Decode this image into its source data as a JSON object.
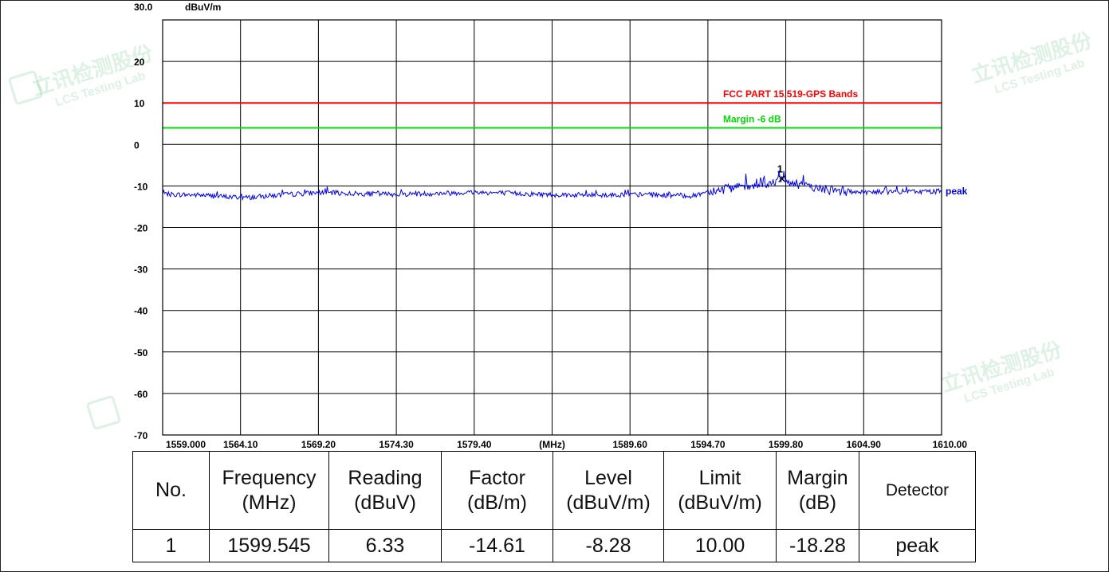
{
  "chart_data": {
    "type": "line",
    "ylabel": "dBuV/m",
    "xlabel": "(MHz)",
    "ylim": [
      -70,
      30
    ],
    "xlim": [
      1559.0,
      1610.0
    ],
    "y_ticks": [
      "30.0",
      "20",
      "10",
      "0",
      "-10",
      "-20",
      "-30",
      "-40",
      "-50",
      "-60",
      "-70"
    ],
    "y_tick_values": [
      30,
      20,
      10,
      0,
      -10,
      -20,
      -30,
      -40,
      -50,
      -60,
      -70
    ],
    "x_ticks": [
      "1559.000",
      "1564.10",
      "1569.20",
      "1574.30",
      "1579.40",
      "(MHz)",
      "1589.60",
      "1594.70",
      "1599.80",
      "1604.90",
      "1610.00"
    ],
    "x_tick_values": [
      1559.0,
      1564.1,
      1569.2,
      1574.3,
      1579.4,
      1584.5,
      1589.6,
      1594.7,
      1599.8,
      1604.9,
      1610.0
    ],
    "limit_lines": [
      {
        "label": "FCC PART 15.519-GPS Bands",
        "value": 10,
        "color": "#ff0000"
      },
      {
        "label": "Margin -6 dB",
        "value": 4,
        "color": "#00dd00"
      }
    ],
    "series": [
      {
        "name": "peak",
        "color": "#0000ee",
        "x": [
          1559.0,
          1561.5,
          1563.0,
          1564.6,
          1567.0,
          1569.2,
          1572.0,
          1574.3,
          1577.0,
          1579.4,
          1582.0,
          1584.5,
          1587.0,
          1589.6,
          1592.0,
          1593.8,
          1594.7,
          1596.0,
          1597.5,
          1599.0,
          1599.545,
          1600.5,
          1602.0,
          1603.0,
          1604.9,
          1607.0,
          1610.0
        ],
        "values": [
          -12.0,
          -12.2,
          -12.6,
          -12.8,
          -12.1,
          -11.6,
          -11.9,
          -12.0,
          -11.8,
          -11.5,
          -11.8,
          -12.1,
          -12.2,
          -12.1,
          -12.2,
          -12.4,
          -11.2,
          -10.7,
          -10.2,
          -9.4,
          -8.28,
          -9.8,
          -10.6,
          -11.2,
          -11.5,
          -11.4,
          -11.3
        ]
      }
    ],
    "marker": {
      "label": "1",
      "x": 1599.545,
      "y": -8.28
    }
  },
  "table": {
    "headers": [
      {
        "line1": "No.",
        "line2": ""
      },
      {
        "line1": "Frequency",
        "line2": "(MHz)"
      },
      {
        "line1": "Reading",
        "line2": "(dBuV)"
      },
      {
        "line1": "Factor",
        "line2": "(dB/m)"
      },
      {
        "line1": "Level",
        "line2": "(dBuV/m)"
      },
      {
        "line1": "Limit",
        "line2": "(dBuV/m)"
      },
      {
        "line1": "Margin",
        "line2": "(dB)"
      },
      {
        "line1": "Detector",
        "line2": ""
      }
    ],
    "rows": [
      [
        "1",
        "1599.545",
        "6.33",
        "-14.61",
        "-8.28",
        "10.00",
        "-18.28",
        "peak"
      ]
    ]
  },
  "watermark": {
    "cn": "立讯检测股份",
    "en": "LCS Testing Lab",
    "color": "#2eaa5a"
  }
}
